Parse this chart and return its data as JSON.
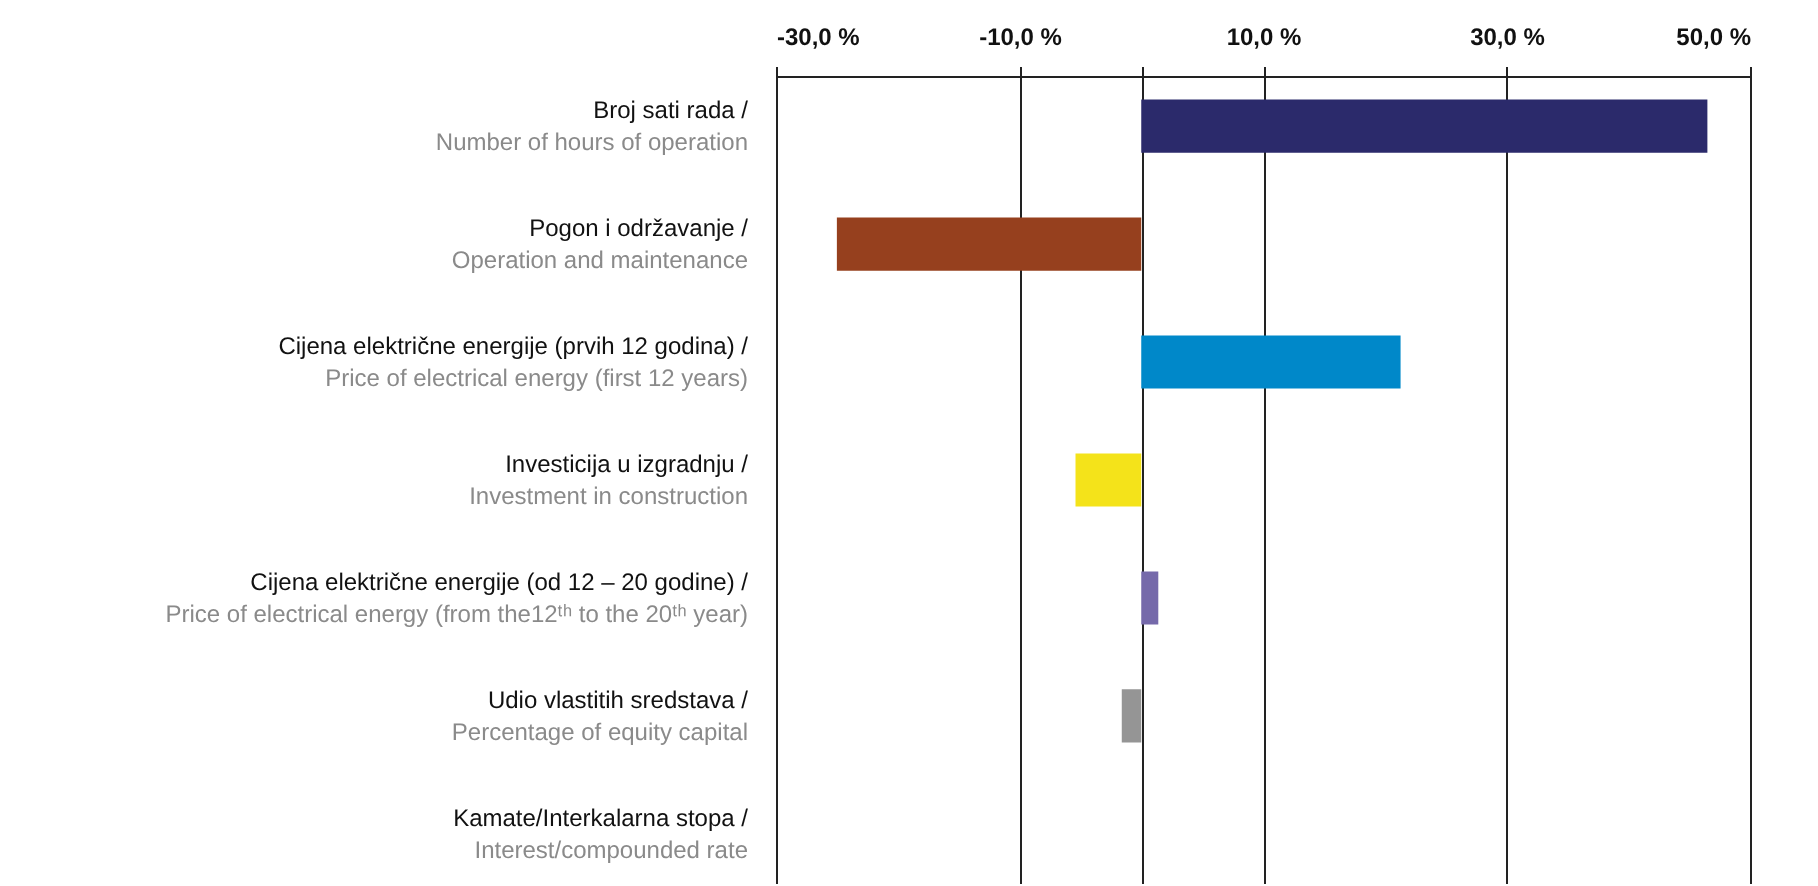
{
  "chart_data": {
    "type": "bar",
    "orientation": "horizontal",
    "categories": [
      "Broj sati rada /\nNumber of hours of operation",
      "Pogon i održavanje /\nOperation and maintenance",
      "Cijena električne energije (prvih 12 godina) /\nPrice of electrical energy (first 12 years)",
      "Investicija u izgradnju /\nInvestment in construction",
      "Cijena električne energije (od 12 – 20 godine) /\nPrice of electrical energy (from the12ᵗʰ to the 20ᵗʰ year)",
      "Udio vlastitih sredstava /\nPercentage of equity capital",
      "Kamate/Interkalarna stopa /\nInterest/compounded rate"
    ],
    "values": [
      46.5,
      -25.0,
      21.3,
      -5.4,
      1.4,
      -1.6,
      0
    ],
    "colors": [
      "#2b2a6b",
      "#96401e",
      "#0088c9",
      "#f4e31a",
      "#7569aa",
      "#959595",
      "#959595"
    ],
    "xlim": [
      -30,
      50
    ],
    "xticks": [
      {
        "value": -30,
        "label": "-30,0 %"
      },
      {
        "value": -10,
        "label": "-10,0 %"
      },
      {
        "value": 0,
        "label": null
      },
      {
        "value": 10,
        "label": "10,0 %"
      },
      {
        "value": 30,
        "label": "30,0 %"
      },
      {
        "value": 50,
        "label": "50,0 %"
      }
    ],
    "grid": "x"
  }
}
